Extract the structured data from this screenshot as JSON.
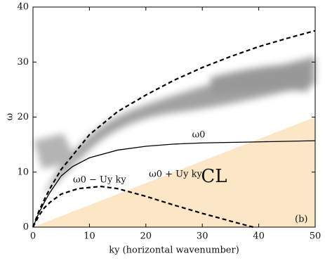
{
  "chart_data": {
    "type": "line",
    "xlabel": "ky (horizontal wavenumber)",
    "ylabel": "ω",
    "xlim": [
      0,
      50
    ],
    "ylim": [
      0,
      40
    ],
    "xticks": [
      0,
      10,
      20,
      30,
      40,
      50
    ],
    "yticks": [
      0,
      10,
      20,
      30,
      40
    ],
    "panel_label": "(b)",
    "series": [
      {
        "name": "CL",
        "style": "area",
        "color": "#fbe6c6",
        "x": [
          0,
          50
        ],
        "values": [
          0,
          20
        ]
      },
      {
        "name": "ω0 + Uy ky",
        "style": "dashed",
        "color": "#000000",
        "x": [
          0,
          1,
          2,
          3,
          5,
          7,
          10,
          15,
          20,
          25,
          30,
          35,
          40,
          45,
          50
        ],
        "values": [
          0,
          2.8,
          5,
          7,
          10.5,
          13,
          16.8,
          21,
          24,
          26.7,
          29,
          31,
          32.8,
          34.3,
          35.7
        ]
      },
      {
        "name": "ω0",
        "style": "solid",
        "color": "#000000",
        "x": [
          0,
          1,
          2,
          3,
          5,
          7,
          10,
          15,
          20,
          25,
          30,
          40,
          50
        ],
        "values": [
          0,
          2.5,
          4.5,
          6.3,
          9.3,
          11,
          12.6,
          14,
          14.7,
          15.1,
          15.3,
          15.5,
          15.7
        ]
      },
      {
        "name": "ω0 − Uy ky",
        "style": "dashed",
        "color": "#000000",
        "x": [
          0,
          1,
          2,
          3,
          5,
          8,
          12,
          15,
          20,
          25,
          30,
          35,
          39
        ],
        "values": [
          0,
          2,
          3.5,
          4.5,
          6,
          7,
          7.4,
          7,
          5.6,
          4,
          2.5,
          1.1,
          0
        ]
      }
    ]
  }
}
